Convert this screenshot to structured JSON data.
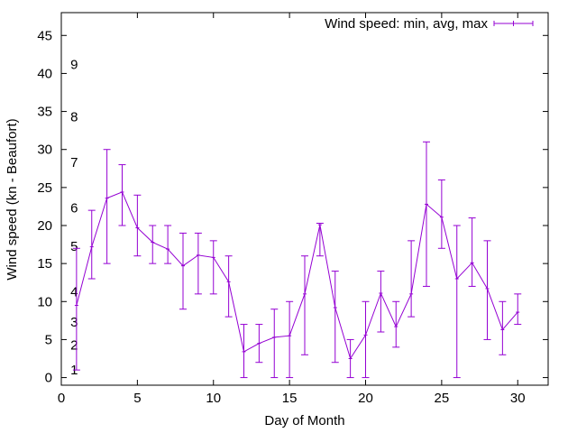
{
  "chart_data": {
    "type": "errorbar-line",
    "xlabel": "Day of Month",
    "ylabel": "Wind speed (kn - Beaufort)",
    "xlim": [
      0,
      32
    ],
    "ylim": [
      -1,
      48
    ],
    "x_ticks": [
      0,
      5,
      10,
      15,
      20,
      25,
      30
    ],
    "y_ticks": [
      0,
      5,
      10,
      15,
      20,
      25,
      30,
      35,
      40,
      45
    ],
    "grid": false,
    "legend_position": "top-right",
    "series": [
      {
        "name": "Wind speed: min, avg, max",
        "color": "#9400d3",
        "x": [
          1,
          2,
          3,
          4,
          5,
          6,
          7,
          8,
          9,
          10,
          11,
          12,
          13,
          14,
          15,
          16,
          17,
          18,
          19,
          20,
          21,
          22,
          23,
          24,
          25,
          26,
          27,
          28,
          29,
          30
        ],
        "avg": [
          9.5,
          17.2,
          23.6,
          24.4,
          19.7,
          17.8,
          16.9,
          14.7,
          16.1,
          15.8,
          12.6,
          3.4,
          4.5,
          5.3,
          5.5,
          11.0,
          20.1,
          9.2,
          2.5,
          5.6,
          11.1,
          6.7,
          11.0,
          22.8,
          21.1,
          13.0,
          15.1,
          11.7,
          6.3,
          8.6
        ],
        "min": [
          1,
          13,
          15,
          20,
          16,
          15,
          15,
          9,
          11,
          11,
          8,
          0,
          2,
          0,
          0,
          3,
          16,
          2,
          0,
          0,
          6,
          4,
          8,
          12,
          17,
          0,
          12,
          5,
          3,
          7
        ],
        "max": [
          17,
          22,
          30,
          28,
          24,
          20,
          20,
          19,
          19,
          18,
          16,
          7,
          7,
          9,
          10,
          16,
          20.3,
          14,
          5,
          10,
          14,
          10,
          18,
          31,
          26,
          20,
          21,
          18,
          10,
          11
        ]
      }
    ],
    "annotations": [
      {
        "text": "1",
        "x": 0.6,
        "y": 1
      },
      {
        "text": "2",
        "x": 0.6,
        "y": 4.3
      },
      {
        "text": "3",
        "x": 0.6,
        "y": 7.3
      },
      {
        "text": "4",
        "x": 0.6,
        "y": 11.3
      },
      {
        "text": "5",
        "x": 0.6,
        "y": 17.3
      },
      {
        "text": "6",
        "x": 0.6,
        "y": 22.3
      },
      {
        "text": "7",
        "x": 0.6,
        "y": 28.3
      },
      {
        "text": "8",
        "x": 0.6,
        "y": 34.3
      },
      {
        "text": "9",
        "x": 0.6,
        "y": 41.2
      }
    ]
  }
}
